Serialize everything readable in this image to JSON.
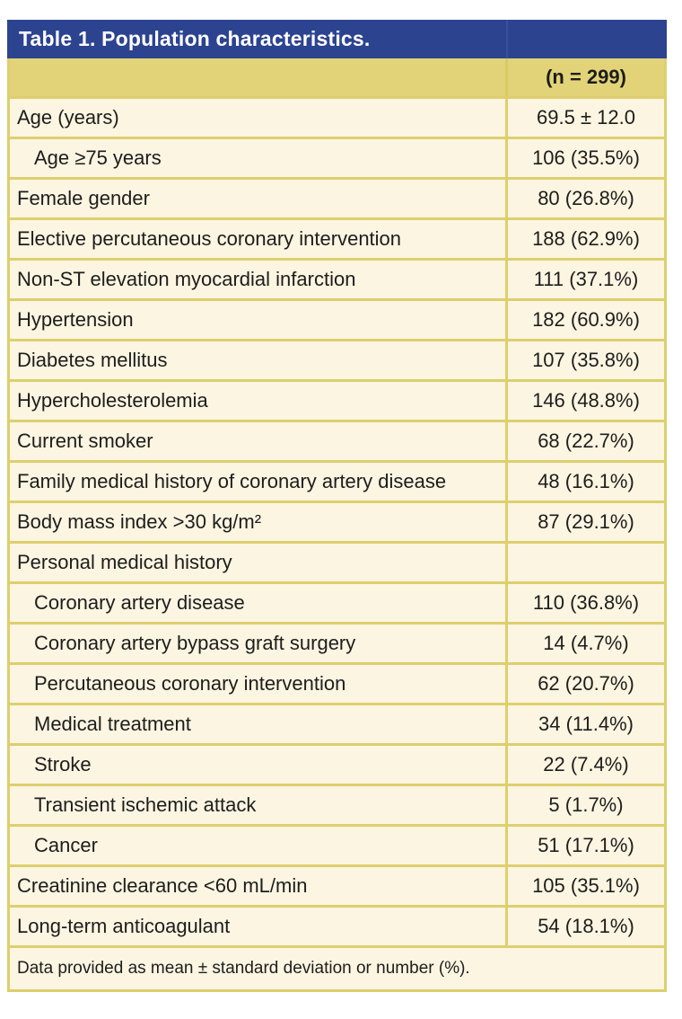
{
  "table": {
    "title": "Table 1. Population characteristics.",
    "column_header": "(n = 299)",
    "rows": [
      {
        "label": "Age (years)",
        "value": "69.5 ± 12.0",
        "indent": false
      },
      {
        "label": "Age ≥75 years",
        "value": "106 (35.5%)",
        "indent": true
      },
      {
        "label": "Female gender",
        "value": "80 (26.8%)",
        "indent": false
      },
      {
        "label": "Elective percutaneous coronary intervention",
        "value": "188 (62.9%)",
        "indent": false
      },
      {
        "label": "Non-ST elevation myocardial infarction",
        "value": "111 (37.1%)",
        "indent": false
      },
      {
        "label": "Hypertension",
        "value": "182 (60.9%)",
        "indent": false
      },
      {
        "label": "Diabetes mellitus",
        "value": "107 (35.8%)",
        "indent": false
      },
      {
        "label": "Hypercholesterolemia",
        "value": "146 (48.8%)",
        "indent": false
      },
      {
        "label": "Current smoker",
        "value": "68 (22.7%)",
        "indent": false
      },
      {
        "label": "Family medical history of coronary artery disease",
        "value": "48 (16.1%)",
        "indent": false
      },
      {
        "label": "Body mass index >30 kg/m²",
        "value": "87 (29.1%)",
        "indent": false
      },
      {
        "label": "Personal medical history",
        "value": "",
        "indent": false
      },
      {
        "label": "Coronary artery disease",
        "value": "110 (36.8%)",
        "indent": true
      },
      {
        "label": "Coronary artery bypass graft surgery",
        "value": "14 (4.7%)",
        "indent": true
      },
      {
        "label": "Percutaneous coronary intervention",
        "value": "62 (20.7%)",
        "indent": true
      },
      {
        "label": "Medical treatment",
        "value": "34 (11.4%)",
        "indent": true
      },
      {
        "label": "Stroke",
        "value": "22 (7.4%)",
        "indent": true
      },
      {
        "label": "Transient ischemic attack",
        "value": "5 (1.7%)",
        "indent": true
      },
      {
        "label": "Cancer",
        "value": "51 (17.1%)",
        "indent": true
      },
      {
        "label": "Creatinine clearance <60 mL/min",
        "value": "105 (35.1%)",
        "indent": false
      },
      {
        "label": "Long-term anticoagulant",
        "value": "54 (18.1%)",
        "indent": false
      }
    ],
    "footnote": "Data provided as mean ± standard deviation or number (%).",
    "colors": {
      "title_bar_blue": "#2c4390",
      "title_text": "#ffffff",
      "gold_border": "#ddcf6e",
      "header_band_yellow": "#e2d378",
      "row_cream": "#fcf5e2",
      "body_text": "#1d1d1b"
    }
  }
}
